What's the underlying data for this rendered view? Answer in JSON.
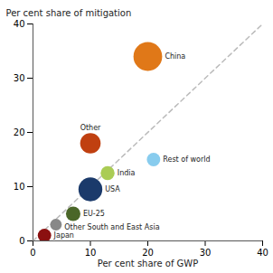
{
  "chart_data": {
    "type": "scatter",
    "xlabel": "Per cent share of GWP",
    "ylabel": "Per cent share of mitigation",
    "labels": [
      "China",
      "Other",
      "Rest of world",
      "India",
      "USA",
      "EU-25",
      "Other South and East Asia",
      "Japan"
    ],
    "x": [
      20,
      10,
      21,
      13,
      10,
      7,
      4,
      2
    ],
    "values": [
      34,
      18,
      15,
      12.5,
      9.5,
      5,
      3,
      1
    ],
    "sizes": [
      550,
      280,
      120,
      130,
      380,
      140,
      90,
      120
    ],
    "colors": [
      "#E07818",
      "#C04010",
      "#88CCEE",
      "#AACC55",
      "#1B3A6B",
      "#4A6628",
      "#888888",
      "#8B1010"
    ],
    "xlim": [
      0,
      40
    ],
    "ylim": [
      0,
      40
    ],
    "xticks": [
      0,
      10,
      20,
      30,
      40
    ],
    "yticks": [
      0,
      10,
      20,
      30,
      40
    ],
    "grid": false,
    "background": "#FFFFFF",
    "diagonal": {
      "x": [
        0,
        40
      ],
      "values": [
        0,
        40
      ],
      "color": "#BBBBBB",
      "line_style": "dashed"
    }
  }
}
